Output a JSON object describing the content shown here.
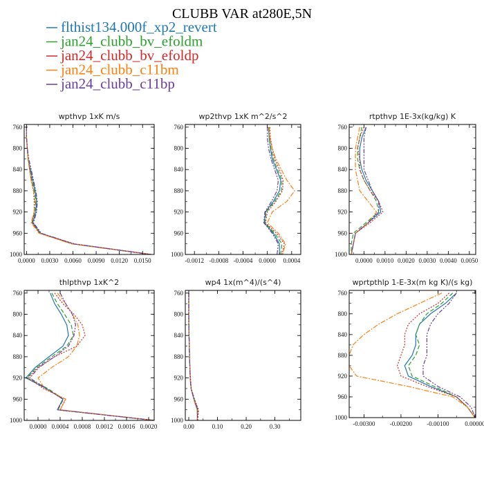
{
  "figure": {
    "title": "CLUBB VAR at280E,5N"
  },
  "chart_data": {
    "title": "CLUBB VAR at280E,5N",
    "series": [
      {
        "name": "flthist134.000f_xp2_revert",
        "color": "#1f77b4",
        "dash": ""
      },
      {
        "name": "jan24_clubb_bv_efoldm",
        "color": "#2ca02c",
        "dash": "6 3"
      },
      {
        "name": "jan24_clubb_bv_efoldp",
        "color": "#d62728",
        "dash": "2 2"
      },
      {
        "name": "jan24_clubb_c11bm",
        "color": "#ff7f0e",
        "dash": "7 2 2 2"
      },
      {
        "name": "jan24_clubb_c11bp",
        "color": "#6a3d9a",
        "dash": "6 2 2 2 2 2"
      }
    ],
    "y": [
      760,
      780,
      800,
      820,
      840,
      860,
      880,
      900,
      920,
      940,
      960,
      980,
      1000
    ],
    "panels": [
      {
        "type": "line",
        "title": "wpthvp   1xK m/s",
        "xlim": [
          -0.0003,
          0.0165
        ],
        "ylim": [
          1000,
          755
        ],
        "xticks": [
          0,
          0.003,
          0.006,
          0.009,
          0.012,
          0.015
        ],
        "xtick_labels": [
          "0.0000",
          "0.0030",
          "0.0060",
          "0.0090",
          "0.0120",
          "0.0150"
        ],
        "yticks": [
          760,
          800,
          840,
          880,
          920,
          960,
          1000
        ],
        "x": [
          [
            0.0,
            0.0,
            0.0001,
            0.0002,
            0.0005,
            0.0008,
            0.0011,
            0.0013,
            0.0012,
            0.0008,
            0.0018,
            0.006,
            0.0161
          ],
          [
            0.0,
            0.0,
            0.0001,
            0.0002,
            0.0004,
            0.0007,
            0.001,
            0.0012,
            0.0011,
            0.0007,
            0.0017,
            0.0059,
            0.016
          ],
          [
            0.0,
            0.0,
            0.0001,
            0.0002,
            0.0004,
            0.0006,
            0.0009,
            0.001,
            0.001,
            0.0007,
            0.0017,
            0.0062,
            0.0162
          ],
          [
            0.0,
            0.0,
            0.0001,
            0.0002,
            0.0004,
            0.0006,
            0.0009,
            0.0011,
            0.001,
            0.0006,
            0.0016,
            0.0058,
            0.0159
          ],
          [
            0.0,
            0.0,
            0.0001,
            0.0003,
            0.0006,
            0.0009,
            0.0012,
            0.0014,
            0.0013,
            0.0009,
            0.0019,
            0.0061,
            0.016
          ]
        ]
      },
      {
        "type": "line",
        "title": "wp2thvp   1xK m^2/s^2",
        "xlim": [
          -0.00135,
          0.00055
        ],
        "ylim": [
          1000,
          755
        ],
        "xticks": [
          -0.0012,
          -0.0008,
          -0.0004,
          0.0,
          0.0004
        ],
        "xtick_labels": [
          "-0.0012",
          "-0.0008",
          "-0.0004",
          "0.0000",
          "0.0004"
        ],
        "yticks": [
          760,
          800,
          840,
          880,
          920,
          960,
          1000
        ],
        "x": [
          [
            2e-05,
            3e-05,
            5e-05,
            8e-05,
            0.00015,
            0.00022,
            0.0002,
            0.0001,
            -3e-05,
            -5e-05,
            0.0001,
            0.0002,
            0.0002
          ],
          [
            2e-05,
            3e-05,
            6e-05,
            0.0001,
            0.00017,
            0.00024,
            0.00023,
            0.00012,
            -2e-05,
            -4e-05,
            0.00012,
            0.00024,
            0.00022
          ],
          [
            4e-05,
            5e-05,
            8e-05,
            0.00012,
            0.0002,
            0.00026,
            0.00025,
            0.00014,
            0.0,
            -3e-05,
            0.00015,
            0.00028,
            0.00024
          ],
          [
            3e-05,
            4e-05,
            8e-05,
            0.00014,
            0.00023,
            0.00032,
            0.00045,
            0.00032,
            8e-05,
            0.0,
            0.00018,
            0.0003,
            0.00025
          ],
          [
            0.0,
            0.0,
            2e-05,
            6e-05,
            0.00012,
            0.00018,
            0.00016,
            7e-05,
            -4e-05,
            -6e-05,
            8e-05,
            0.00018,
            0.00016
          ]
        ]
      },
      {
        "type": "line",
        "title": "rtpthvp   1E-3x(kg/kg) K",
        "xlim": [
          -0.0007,
          0.0053
        ],
        "ylim": [
          1000,
          755
        ],
        "xticks": [
          0.0,
          0.001,
          0.002,
          0.003,
          0.004,
          0.005
        ],
        "xtick_labels": [
          "0.0000",
          "0.0010",
          "0.0020",
          "0.0030",
          "0.0040",
          "0.0050"
        ],
        "yticks": [
          760,
          800,
          840,
          880,
          920,
          960,
          1000
        ],
        "x": [
          [
            0.0001,
            -0.0001,
            -0.0002,
            -0.0002,
            -0.0001,
            0.0001,
            0.0004,
            0.0007,
            0.0008,
            0.0002,
            -0.0004,
            -0.0005,
            -0.0006
          ],
          [
            -0.0001,
            -0.0002,
            -0.0003,
            -0.0003,
            -0.0002,
            0.0,
            0.0003,
            0.0006,
            0.0007,
            0.0001,
            -0.0005,
            -0.0006,
            -0.0006
          ],
          [
            0.0,
            -0.0002,
            -0.0003,
            -0.0002,
            -0.0002,
            0.0,
            0.0003,
            0.0007,
            0.0009,
            0.0003,
            -0.0004,
            -0.0005,
            -0.0006
          ],
          [
            -0.0002,
            -0.0003,
            -0.0004,
            -0.0004,
            -0.0004,
            -0.0003,
            -0.0002,
            0.0002,
            0.0006,
            0.0002,
            -0.0004,
            -0.0005,
            -0.0006
          ],
          [
            0.0001,
            0.0,
            0.0,
            0.0,
            0.0,
            0.0002,
            0.0004,
            0.0007,
            0.0007,
            0.0002,
            -0.0004,
            -0.0005,
            -0.0006
          ]
        ]
      },
      {
        "type": "line",
        "title": "thlpthvp   1xK^2",
        "xlim": [
          -0.00025,
          0.0021
        ],
        "ylim": [
          1000,
          755
        ],
        "xticks": [
          0.0,
          0.0004,
          0.0008,
          0.0012,
          0.0016,
          0.002
        ],
        "xtick_labels": [
          "0.0000",
          "0.0004",
          "0.0008",
          "0.0012",
          "0.0016",
          "0.0020"
        ],
        "yticks": [
          760,
          800,
          840,
          880,
          920,
          960,
          1000
        ],
        "x": [
          [
            0.00022,
            0.0003,
            0.00042,
            0.00052,
            0.00055,
            0.00045,
            0.0002,
            -5e-05,
            -0.00022,
            0.00015,
            0.00045,
            0.00035,
            0.0021
          ],
          [
            0.00025,
            0.00035,
            0.00048,
            0.0006,
            0.00064,
            0.00052,
            0.00025,
            -2e-05,
            -0.0002,
            0.00018,
            0.00046,
            0.00036,
            0.0021
          ],
          [
            0.0003,
            0.00045,
            0.00065,
            0.0008,
            0.00085,
            0.0007,
            0.0003,
            0.0,
            -0.00018,
            0.0001,
            0.0005,
            0.0004,
            0.0021
          ],
          [
            0.00035,
            0.0005,
            0.00062,
            0.00072,
            0.00075,
            0.0007,
            0.00055,
            0.00025,
            0.0,
            0.00012,
            0.0005,
            0.0004,
            0.0021
          ],
          [
            0.0004,
            0.0005,
            0.00062,
            0.00068,
            0.00065,
            0.00055,
            0.0003,
            2e-05,
            -0.00015,
            0.00015,
            0.00045,
            0.00035,
            0.0021
          ]
        ]
      },
      {
        "type": "line",
        "title": "wp4   1x(m^4)/(s^4)",
        "xlim": [
          -0.012,
          0.39
        ],
        "ylim": [
          1000,
          755
        ],
        "xticks": [
          0.0,
          0.1,
          0.2,
          0.3
        ],
        "xtick_labels": [
          "0.00",
          "0.10",
          "0.20",
          "0.30"
        ],
        "yticks": [
          760,
          800,
          840,
          880,
          920,
          960,
          1000
        ],
        "x": [
          [
            0.0,
            0.0,
            0.0,
            0.0,
            0.001,
            0.002,
            0.003,
            0.004,
            0.005,
            0.008,
            0.018,
            0.03,
            0.03
          ],
          [
            0.0,
            0.0,
            0.0,
            0.001,
            0.001,
            0.002,
            0.003,
            0.004,
            0.005,
            0.008,
            0.019,
            0.032,
            0.03
          ],
          [
            0.0,
            0.0,
            0.0,
            0.0,
            0.001,
            0.002,
            0.003,
            0.004,
            0.006,
            0.009,
            0.02,
            0.034,
            0.031
          ],
          [
            0.0,
            0.0,
            0.0,
            0.0,
            0.001,
            0.002,
            0.003,
            0.004,
            0.005,
            0.008,
            0.017,
            0.029,
            0.03
          ],
          [
            0.0,
            0.0,
            0.0,
            0.0,
            0.001,
            0.002,
            0.003,
            0.004,
            0.005,
            0.008,
            0.019,
            0.031,
            0.03
          ]
        ]
      },
      {
        "type": "line",
        "title": "wprtpthlp   1-E-3x(m kg K)/(s kg)",
        "xlim": [
          -0.0034,
          2e-05
        ],
        "ylim": [
          1000,
          755
        ],
        "xticks": [
          -0.003,
          -0.002,
          -0.001,
          0.0
        ],
        "xtick_labels": [
          "-0.00300",
          "-0.00200",
          "-0.00100",
          "0.00000"
        ],
        "yticks": [
          760,
          800,
          840,
          880,
          920,
          960,
          1000
        ],
        "x": [
          [
            -0.0005,
            -0.0008,
            -0.0012,
            -0.0015,
            -0.0016,
            -0.0016,
            -0.0017,
            -0.0019,
            -0.0018,
            -0.0012,
            -0.0005,
            -0.0002,
            0.0
          ],
          [
            -0.0006,
            -0.0009,
            -0.0013,
            -0.0015,
            -0.0016,
            -0.0015,
            -0.0016,
            -0.0018,
            -0.0017,
            -0.0011,
            -0.0005,
            -0.0002,
            0.0
          ],
          [
            -0.0007,
            -0.001,
            -0.0015,
            -0.0018,
            -0.0019,
            -0.0019,
            -0.002,
            -0.0021,
            -0.002,
            -0.0013,
            -0.0005,
            -0.0002,
            0.0
          ],
          [
            -0.0009,
            -0.0015,
            -0.0021,
            -0.0026,
            -0.003,
            -0.0033,
            -0.0034,
            -0.0034,
            -0.0032,
            -0.0018,
            -0.0006,
            -0.0002,
            0.0
          ],
          [
            -0.0005,
            -0.0007,
            -0.001,
            -0.0012,
            -0.0013,
            -0.0013,
            -0.0013,
            -0.0014,
            -0.0014,
            -0.001,
            -0.0004,
            -0.0001,
            0.0
          ]
        ]
      }
    ]
  }
}
